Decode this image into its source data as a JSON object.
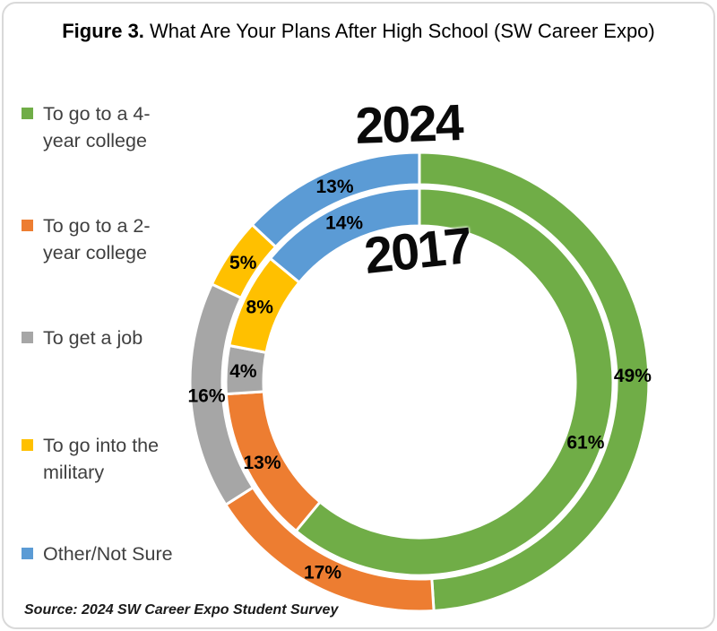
{
  "title": {
    "prefix": "Figure 3.",
    "rest": " What Are Your Plans After High School (SW Career Expo)"
  },
  "source": "Source: 2024 SW Career Expo Student Survey",
  "legend": {
    "items": [
      {
        "label": "To go to a 4-year college",
        "lines": [
          "To go to a 4-",
          "year college"
        ],
        "color": "#70AD47"
      },
      {
        "label": "To go to a 2-year college",
        "lines": [
          "To go to a 2-",
          "year college"
        ],
        "color": "#ED7D31"
      },
      {
        "label": "To get a job",
        "lines": [
          "To get a job"
        ],
        "color": "#A6A6A6"
      },
      {
        "label": "To go into the military",
        "lines": [
          "To go into the",
          "military"
        ],
        "color": "#FFC000"
      },
      {
        "label": "Other/Not Sure",
        "lines": [
          "Other/Not Sure"
        ],
        "color": "#5B9BD5"
      }
    ]
  },
  "chart_data": {
    "type": "donut",
    "title": "Figure 3. What Are Your Plans After High School (SW Career Expo)",
    "categories": [
      "To go to a 4-year college",
      "To go to a 2-year college",
      "To get a job",
      "To go into the military",
      "Other/Not Sure"
    ],
    "colors": [
      "#70AD47",
      "#ED7D31",
      "#A6A6A6",
      "#FFC000",
      "#5B9BD5"
    ],
    "series": [
      {
        "name": "2024",
        "ring": "outer",
        "values": [
          49,
          17,
          16,
          5,
          13
        ]
      },
      {
        "name": "2017",
        "ring": "inner",
        "values": [
          61,
          13,
          4,
          8,
          14
        ]
      }
    ],
    "unit": "%",
    "start_angle_deg": 0,
    "direction": "clockwise",
    "legend_position": "left",
    "separator_color": "#ffffff",
    "source": "Source: 2024 SW Career Expo Student Survey"
  }
}
